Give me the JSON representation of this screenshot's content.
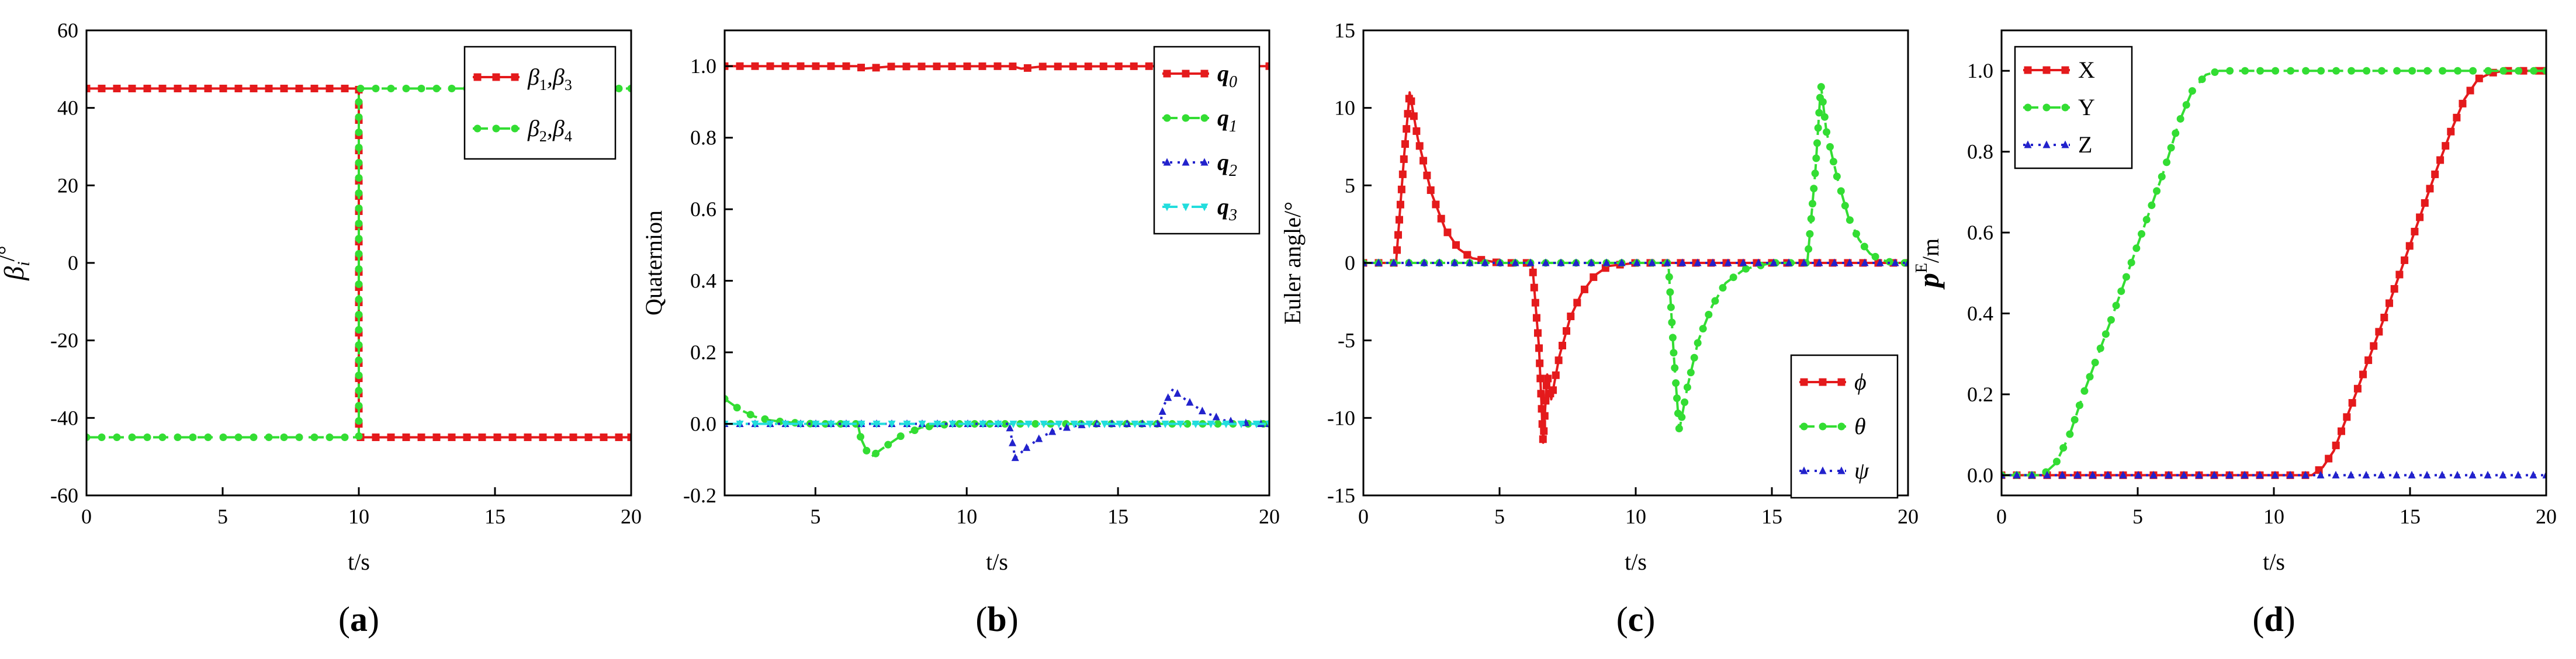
{
  "colors": {
    "red": "#e41a1c",
    "green": "#33dd33",
    "blue": "#2222cc",
    "cyan": "#22dddd",
    "axis": "#000000"
  },
  "panels": [
    {
      "caption": "a"
    },
    {
      "caption": "b"
    },
    {
      "caption": "c"
    },
    {
      "caption": "d"
    }
  ],
  "chart_data": [
    {
      "panel": "a",
      "type": "line",
      "xlabel": "t/s",
      "ylabel_main": "β",
      "ylabel_sub": "i",
      "ylabel_sup": "/°",
      "xlim": [
        0,
        20
      ],
      "ylim": [
        -60,
        60
      ],
      "xticks": [
        0,
        5,
        10,
        15,
        20
      ],
      "xtick_labels": [
        "0",
        "5",
        "10",
        "15",
        "20"
      ],
      "yticks": [
        -60,
        -40,
        -20,
        0,
        20,
        40,
        60
      ],
      "ytick_labels": [
        "-60",
        "-40",
        "-20",
        "0",
        "20",
        "40",
        "60"
      ],
      "legend_position": "top-right",
      "series": [
        {
          "name": "β1,β3",
          "label_parts": [
            "β",
            "1",
            ",β",
            "3"
          ],
          "color": "red",
          "dash": "solid",
          "marker": "square",
          "x": [
            0,
            10,
            10,
            20
          ],
          "y": [
            45,
            45,
            -45,
            -45
          ]
        },
        {
          "name": "β2,β4",
          "label_parts": [
            "β",
            "2",
            ",β",
            "4"
          ],
          "color": "green",
          "dash": "dash",
          "marker": "circle",
          "x": [
            0,
            10,
            10,
            20
          ],
          "y": [
            -45,
            -45,
            45,
            45
          ]
        }
      ]
    },
    {
      "panel": "b",
      "type": "line",
      "xlabel": "t/s",
      "ylabel": "Quaternion",
      "xlim": [
        2,
        20
      ],
      "ylim": [
        -0.2,
        1.1
      ],
      "xticks": [
        5,
        10,
        15,
        20
      ],
      "xtick_labels": [
        "5",
        "10",
        "15",
        "20"
      ],
      "yticks": [
        -0.2,
        0.0,
        0.2,
        0.4,
        0.6,
        0.8,
        1.0
      ],
      "ytick_labels": [
        "-0.2",
        "0.0",
        "0.2",
        "0.4",
        "0.6",
        "0.8",
        "1.0"
      ],
      "legend_position": "top-right",
      "series": [
        {
          "name": "q0",
          "label_parts": [
            "q",
            "0"
          ],
          "color": "red",
          "dash": "solid",
          "marker": "square",
          "x": [
            2,
            6.4,
            6.6,
            7.5,
            11.5,
            11.8,
            12.5,
            16.5,
            16.8,
            17.5,
            20
          ],
          "y": [
            1.0,
            1.0,
            0.993,
            0.999,
            1.0,
            0.993,
            0.999,
            1.0,
            0.995,
            0.999,
            1.0
          ]
        },
        {
          "name": "q1",
          "label_parts": [
            "q",
            "1"
          ],
          "color": "green",
          "dash": "dash",
          "marker": "circle",
          "x": [
            2,
            2.5,
            3,
            3.5,
            4,
            4.5,
            5,
            5.5,
            6.4,
            6.5,
            6.8,
            7.2,
            7.8,
            8.5,
            9.5,
            11,
            20
          ],
          "y": [
            0.07,
            0.04,
            0.02,
            0.01,
            0.005,
            0.002,
            0.0,
            0.0,
            0.0,
            -0.04,
            -0.095,
            -0.07,
            -0.035,
            -0.01,
            0.0,
            0.0,
            0.0
          ]
        },
        {
          "name": "q2",
          "label_parts": [
            "q",
            "2"
          ],
          "color": "blue",
          "dash": "dot",
          "marker": "triangle",
          "x": [
            2,
            11.4,
            11.6,
            12.0,
            12.5,
            13.0,
            14.0,
            16.4,
            16.5,
            16.8,
            17.2,
            17.8,
            18.5,
            19.5,
            20
          ],
          "y": [
            0.0,
            0.0,
            -0.095,
            -0.065,
            -0.035,
            -0.015,
            0.0,
            0.0,
            0.05,
            0.095,
            0.07,
            0.035,
            0.01,
            0.0,
            0.0
          ]
        },
        {
          "name": "q3",
          "label_parts": [
            "q",
            "3"
          ],
          "color": "cyan",
          "dash": "dashdot",
          "marker": "triangle-down",
          "x": [
            2,
            20
          ],
          "y": [
            0.0,
            0.0
          ]
        }
      ]
    },
    {
      "panel": "c",
      "type": "line",
      "xlabel": "t/s",
      "ylabel": "Euler angle/°",
      "xlim": [
        0,
        20
      ],
      "ylim": [
        -15,
        15
      ],
      "xticks": [
        0,
        5,
        10,
        15,
        20
      ],
      "xtick_labels": [
        "0",
        "5",
        "10",
        "15",
        "20"
      ],
      "yticks": [
        -15,
        -10,
        -5,
        0,
        5,
        10,
        15
      ],
      "ytick_labels": [
        "-15",
        "-10",
        "-5",
        "0",
        "5",
        "10",
        "15"
      ],
      "legend_position": "bottom-right",
      "series": [
        {
          "name": "ϕ",
          "label_parts": [
            "ϕ"
          ],
          "color": "red",
          "dash": "solid",
          "marker": "square",
          "x": [
            0,
            1.2,
            1.5,
            1.7,
            2.0,
            2.5,
            3.0,
            3.5,
            4.0,
            5.0,
            6.2,
            6.45,
            6.6,
            6.75,
            6.9,
            7.2,
            7.6,
            8.0,
            8.5,
            9.0,
            10.0,
            20
          ],
          "y": [
            0,
            0,
            7.0,
            11.0,
            8.0,
            4.5,
            2.2,
            0.9,
            0.3,
            0,
            0,
            -5.5,
            -11.6,
            -7.2,
            -8.8,
            -6.0,
            -3.5,
            -2.0,
            -0.8,
            -0.2,
            0,
            0
          ]
        },
        {
          "name": "θ",
          "label_parts": [
            "θ"
          ],
          "color": "green",
          "dash": "dash",
          "marker": "circle",
          "x": [
            0,
            11.2,
            11.4,
            11.6,
            11.9,
            12.3,
            12.8,
            13.3,
            14.0,
            15.0,
            16.3,
            16.6,
            16.8,
            17.0,
            17.4,
            17.8,
            18.2,
            18.6,
            19.0,
            19.5,
            20
          ],
          "y": [
            0,
            0,
            -6.0,
            -10.8,
            -8.0,
            -5.0,
            -2.8,
            -1.3,
            -0.4,
            0,
            0,
            6.0,
            11.5,
            8.5,
            5.5,
            3.0,
            1.5,
            0.6,
            0.2,
            0,
            0
          ]
        },
        {
          "name": "ψ",
          "label_parts": [
            "ψ"
          ],
          "color": "blue",
          "dash": "dot",
          "marker": "triangle",
          "x": [
            0,
            20
          ],
          "y": [
            0,
            0
          ]
        }
      ]
    },
    {
      "panel": "d",
      "type": "line",
      "xlabel": "t/s",
      "ylabel_main": "p",
      "ylabel_sup": "E",
      "ylabel_suffix": "/m",
      "xlim": [
        0,
        20
      ],
      "ylim": [
        -0.05,
        1.1
      ],
      "xticks": [
        0,
        5,
        10,
        15,
        20
      ],
      "xtick_labels": [
        "0",
        "5",
        "10",
        "15",
        "20"
      ],
      "yticks": [
        0.0,
        0.2,
        0.4,
        0.6,
        0.8,
        1.0
      ],
      "ytick_labels": [
        "0.0",
        "0.2",
        "0.4",
        "0.6",
        "0.8",
        "1.0"
      ],
      "legend_position": "top-left",
      "series": [
        {
          "name": "X",
          "label_parts": [
            "X"
          ],
          "color": "red",
          "dash": "solid",
          "marker": "square",
          "x": [
            0,
            11.4,
            11.8,
            12.2,
            13.0,
            14.0,
            15.0,
            16.0,
            16.5,
            17.0,
            17.5,
            18.0,
            18.5,
            19.0,
            20
          ],
          "y": [
            0,
            0,
            0.02,
            0.06,
            0.2,
            0.38,
            0.57,
            0.76,
            0.85,
            0.93,
            0.98,
            0.995,
            1.0,
            1.0,
            1.0
          ]
        },
        {
          "name": "Y",
          "label_parts": [
            "Y"
          ],
          "color": "green",
          "dash": "dash",
          "marker": "circle",
          "x": [
            0,
            1.5,
            2.0,
            2.5,
            3.0,
            4.0,
            5.0,
            6.0,
            6.5,
            7.0,
            7.5,
            8.0,
            9.0,
            20
          ],
          "y": [
            0,
            0,
            0.03,
            0.1,
            0.2,
            0.38,
            0.57,
            0.76,
            0.87,
            0.95,
            0.99,
            1.0,
            1.0,
            1.0
          ]
        },
        {
          "name": "Z",
          "label_parts": [
            "Z"
          ],
          "color": "blue",
          "dash": "dot",
          "marker": "triangle",
          "x": [
            0,
            20
          ],
          "y": [
            0,
            0
          ]
        }
      ]
    }
  ]
}
